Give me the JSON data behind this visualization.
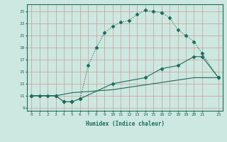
{
  "xlabel": "Humidex (Indice chaleur)",
  "background_color": "#cce8e0",
  "grid_color": "#cc9999",
  "line_color": "#1a6b5a",
  "xlim": [
    -0.5,
    23.5
  ],
  "ylim": [
    8.5,
    26.2
  ],
  "xticks": [
    0,
    1,
    2,
    3,
    4,
    5,
    6,
    7,
    8,
    9,
    10,
    11,
    12,
    13,
    14,
    15,
    16,
    17,
    18,
    19,
    20,
    21,
    23
  ],
  "yticks": [
    9,
    11,
    13,
    15,
    17,
    19,
    21,
    23,
    25
  ],
  "curve1_x": [
    0,
    1,
    2,
    3,
    4,
    5,
    6,
    7,
    8,
    9,
    10,
    11,
    12,
    13,
    14,
    15,
    16,
    17,
    18,
    19,
    20,
    21,
    23
  ],
  "curve1_y": [
    11,
    11,
    11,
    11,
    10,
    10,
    10.5,
    16,
    19,
    21.5,
    22.5,
    23.2,
    23.5,
    24.5,
    25.2,
    25,
    24.8,
    24,
    22,
    21,
    20,
    18,
    14
  ],
  "curve2_x": [
    0,
    3,
    4,
    5,
    6,
    10,
    14,
    16,
    18,
    20,
    21,
    23
  ],
  "curve2_y": [
    11,
    11,
    10,
    10,
    10.5,
    13,
    14,
    15.5,
    16,
    17.5,
    17.5,
    14
  ],
  "curve3_x": [
    0,
    2,
    3,
    5,
    10,
    15,
    20,
    23
  ],
  "curve3_y": [
    11,
    11,
    11,
    11.5,
    12,
    13,
    14,
    14
  ]
}
